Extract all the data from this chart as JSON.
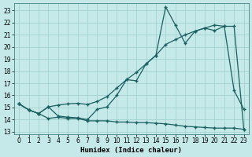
{
  "xlabel": "Humidex (Indice chaleur)",
  "bg_color": "#c5e8e8",
  "grid_color": "#9ecece",
  "line_color": "#1a6060",
  "xlim": [
    -0.5,
    23.5
  ],
  "ylim": [
    12.8,
    23.6
  ],
  "xticks": [
    0,
    1,
    2,
    3,
    4,
    5,
    6,
    7,
    8,
    9,
    10,
    11,
    12,
    13,
    14,
    15,
    16,
    17,
    18,
    19,
    20,
    21,
    22,
    23
  ],
  "yticks": [
    13,
    14,
    15,
    16,
    17,
    18,
    19,
    20,
    21,
    22,
    23
  ],
  "line_flat": {
    "x": [
      0,
      1,
      2,
      3,
      4,
      5,
      6,
      7,
      8,
      9,
      10,
      11,
      12,
      13,
      14,
      15,
      16,
      17,
      18,
      19,
      20,
      21,
      22,
      23
    ],
    "y": [
      15.3,
      14.8,
      14.5,
      14.1,
      14.2,
      14.1,
      14.1,
      13.9,
      13.9,
      13.9,
      13.8,
      13.8,
      13.75,
      13.75,
      13.7,
      13.65,
      13.55,
      13.45,
      13.4,
      13.35,
      13.3,
      13.3,
      13.3,
      13.2
    ]
  },
  "line_smooth": {
    "x": [
      0,
      1,
      2,
      3,
      4,
      5,
      6,
      7,
      8,
      9,
      10,
      11,
      12,
      13,
      14,
      15,
      16,
      17,
      18,
      19,
      20,
      21,
      22,
      23
    ],
    "y": [
      15.3,
      14.8,
      14.5,
      15.05,
      15.2,
      15.3,
      15.35,
      15.25,
      15.5,
      15.9,
      16.6,
      17.3,
      17.9,
      18.6,
      19.3,
      20.2,
      20.6,
      21.0,
      21.3,
      21.55,
      21.35,
      21.7,
      21.7,
      13.2
    ]
  },
  "line_jagged": {
    "x": [
      0,
      1,
      2,
      3,
      4,
      5,
      6,
      7,
      8,
      9,
      10,
      11,
      12,
      13,
      14,
      15,
      16,
      17,
      18,
      19,
      20,
      21,
      22,
      23
    ],
    "y": [
      15.3,
      14.8,
      14.5,
      15.05,
      14.3,
      14.2,
      14.15,
      14.0,
      14.85,
      15.05,
      16.0,
      17.3,
      17.2,
      18.6,
      19.3,
      23.3,
      21.8,
      20.3,
      21.3,
      21.55,
      21.8,
      21.7,
      16.4,
      14.85
    ]
  }
}
